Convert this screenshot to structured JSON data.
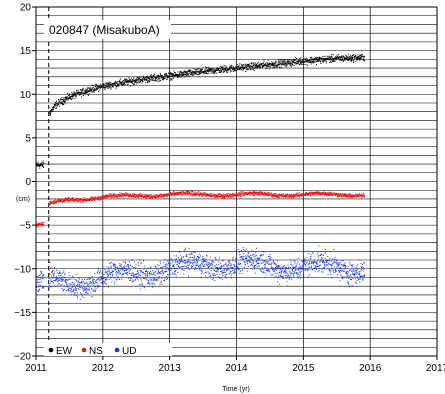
{
  "chart_data": {
    "type": "scatter",
    "title": "020847 (MisakuboA)",
    "xlabel": "Time (yr)",
    "ylabel": "(cm)",
    "xlim": [
      2011,
      2017
    ],
    "ylim": [
      -20,
      20
    ],
    "x_ticks": [
      "2011",
      "2012",
      "2013",
      "2014",
      "2015",
      "2016",
      "2017"
    ],
    "y_ticks": [
      "20",
      "15",
      "10",
      "5",
      "0",
      "−5",
      "−10",
      "−15",
      "−20"
    ],
    "grid": true,
    "event_line_x": 2011.19,
    "legend_position": "bottom-left",
    "series": [
      {
        "name": "EW",
        "color": "#000000",
        "points": [
          [
            2011.0,
            1.9
          ],
          [
            2011.1,
            1.9
          ],
          [
            2011.19,
            1.9
          ],
          [
            2011.2,
            7.8
          ],
          [
            2011.3,
            8.8
          ],
          [
            2011.5,
            9.7
          ],
          [
            2011.8,
            10.5
          ],
          [
            2012.0,
            10.9
          ],
          [
            2012.5,
            11.6
          ],
          [
            2013.0,
            12.1
          ],
          [
            2013.5,
            12.6
          ],
          [
            2014.0,
            13.0
          ],
          [
            2014.5,
            13.4
          ],
          [
            2015.0,
            13.8
          ],
          [
            2015.5,
            14.1
          ],
          [
            2015.92,
            14.2
          ]
        ]
      },
      {
        "name": "NS",
        "color": "#ee1111",
        "points": [
          [
            2011.0,
            -5.0
          ],
          [
            2011.1,
            -5.0
          ],
          [
            2011.19,
            -5.0
          ],
          [
            2011.2,
            -2.6
          ],
          [
            2011.5,
            -2.1
          ],
          [
            2012.0,
            -1.8
          ],
          [
            2012.5,
            -1.6
          ],
          [
            2013.0,
            -1.5
          ],
          [
            2014.0,
            -1.5
          ],
          [
            2015.0,
            -1.5
          ],
          [
            2015.92,
            -1.5
          ]
        ]
      },
      {
        "name": "UD",
        "color": "#1133ee",
        "points": [
          [
            2011.0,
            -11.5
          ],
          [
            2011.19,
            -11.5
          ],
          [
            2011.5,
            -11.8
          ],
          [
            2012.0,
            -11.0
          ],
          [
            2012.5,
            -10.5
          ],
          [
            2013.0,
            -10.0
          ],
          [
            2013.5,
            -9.5
          ],
          [
            2014.0,
            -9.5
          ],
          [
            2014.5,
            -9.7
          ],
          [
            2015.0,
            -9.8
          ],
          [
            2015.5,
            -9.8
          ],
          [
            2015.92,
            -10.0
          ]
        ]
      }
    ],
    "noise": {
      "EW": 0.35,
      "NS": 0.2,
      "UD": 1.1
    },
    "legend": [
      "EW",
      "NS",
      "UD"
    ]
  }
}
